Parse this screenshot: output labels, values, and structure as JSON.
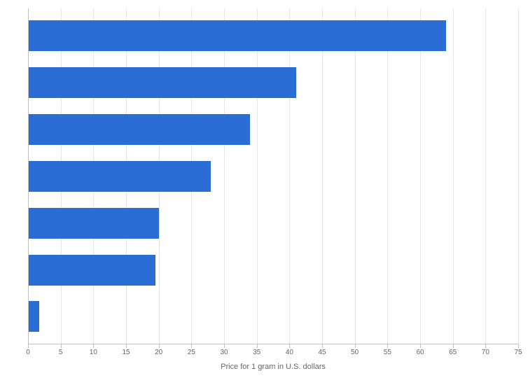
{
  "chart": {
    "type": "bar_horizontal",
    "background_color": "#ffffff",
    "grid_color": "#e6e6e6",
    "axis_line_color": "#bfbfbf",
    "bar_color": "#2a6ed5",
    "xlabel": "Price for 1 gram in U.S. dollars",
    "xlabel_fontsize": 11,
    "xlabel_color": "#666666",
    "xlim": [
      0,
      75
    ],
    "xtick_step": 5,
    "tick_fontsize": 10,
    "tick_color": "#666666",
    "bar_height_ratio": 0.78,
    "values": [
      64,
      41,
      34,
      28,
      20,
      19.5,
      1.7
    ]
  }
}
